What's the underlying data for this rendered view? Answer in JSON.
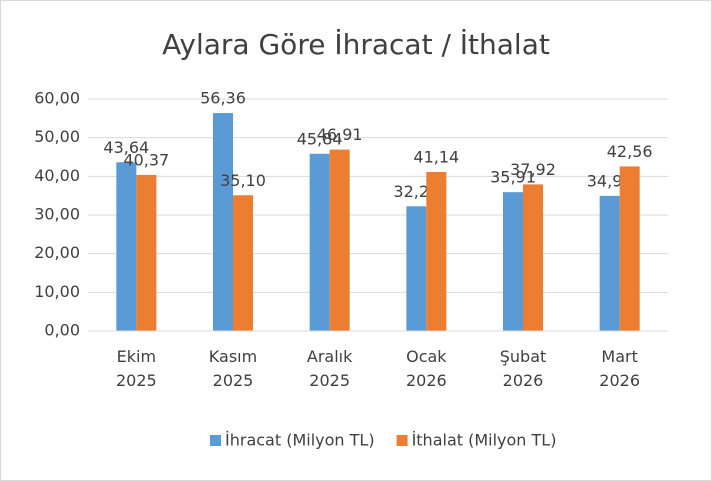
{
  "chart_data": {
    "type": "bar",
    "title": "Aylara Göre İhracat / İthalat",
    "categories": [
      "Ekim 2025",
      "Kasım 2025",
      "Aralık 2025",
      "Ocak 2026",
      "Şubat 2026",
      "Mart 2026"
    ],
    "series": [
      {
        "name": "İhracat (Milyon TL)",
        "color": "#5b9bd5",
        "values": [
          43.64,
          56.36,
          45.84,
          32.25,
          35.91,
          34.95
        ],
        "value_labels": [
          "43,64",
          "56,36",
          "45,84",
          "32,25",
          "35,91",
          "34,95"
        ]
      },
      {
        "name": "İthalat (Milyon TL)",
        "color": "#ed7d31",
        "values": [
          40.37,
          35.1,
          46.91,
          41.14,
          37.92,
          42.56
        ],
        "value_labels": [
          "40,37",
          "35,10",
          "46,91",
          "41,14",
          "37,92",
          "42,56"
        ]
      }
    ],
    "ylim": [
      0,
      60
    ],
    "yticks": [
      {
        "value": 0,
        "label": "0,00"
      },
      {
        "value": 10,
        "label": "10,00"
      },
      {
        "value": 20,
        "label": "20,00"
      },
      {
        "value": 30,
        "label": "30,00"
      },
      {
        "value": 40,
        "label": "40,00"
      },
      {
        "value": 50,
        "label": "50,00"
      },
      {
        "value": 60,
        "label": "60,00"
      }
    ],
    "grid": true,
    "legend": "bottom"
  }
}
